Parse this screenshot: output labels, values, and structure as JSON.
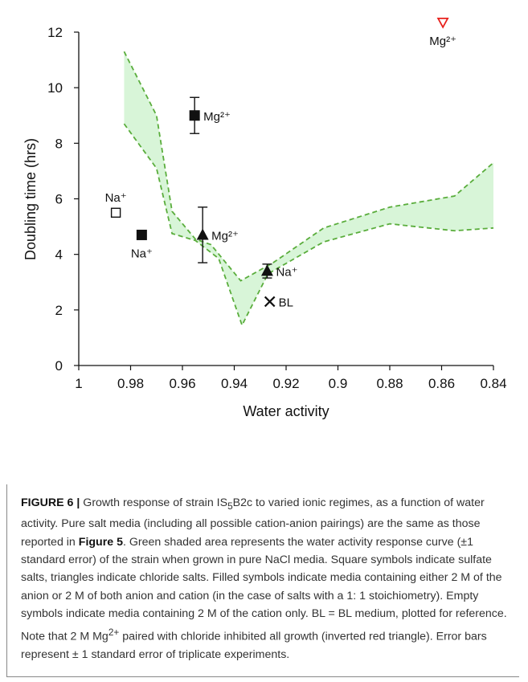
{
  "chart_data": {
    "type": "scatter",
    "xlabel": "Water activity",
    "ylabel": "Doubling time (hrs)",
    "xlim": [
      1,
      0.84
    ],
    "ylim": [
      0,
      12
    ],
    "x_reversed": true,
    "xticks": [
      "1",
      "0.98",
      "0.96",
      "0.94",
      "0.92",
      "0.9",
      "0.88",
      "0.86",
      "0.84"
    ],
    "yticks": [
      "0",
      "2",
      "4",
      "6",
      "8",
      "10",
      "12"
    ],
    "grid": false,
    "band": {
      "fill": "#d8f5d8",
      "stroke": "#5aad3c",
      "upper": [
        [
          0.9825,
          11.3
        ],
        [
          0.97,
          9.0
        ],
        [
          0.964,
          5.55
        ],
        [
          0.955,
          4.55
        ],
        [
          0.949,
          4.35
        ],
        [
          0.9375,
          3.05
        ],
        [
          0.925,
          3.7
        ],
        [
          0.9055,
          4.95
        ],
        [
          0.88,
          5.7
        ],
        [
          0.855,
          6.1
        ],
        [
          0.84,
          7.3
        ]
      ],
      "lower": [
        [
          0.9825,
          8.7
        ],
        [
          0.97,
          7.1
        ],
        [
          0.964,
          4.75
        ],
        [
          0.955,
          4.5
        ],
        [
          0.946,
          3.85
        ],
        [
          0.937,
          1.45
        ],
        [
          0.927,
          3.3
        ],
        [
          0.9055,
          4.45
        ],
        [
          0.88,
          5.1
        ],
        [
          0.855,
          4.85
        ],
        [
          0.84,
          4.95
        ]
      ]
    },
    "points": [
      {
        "x": 0.9857,
        "y": 5.5,
        "marker": "open-square",
        "color": "#111111",
        "label": "Na⁺",
        "label_pos": "above"
      },
      {
        "x": 0.9757,
        "y": 4.7,
        "marker": "filled-square",
        "color": "#111111",
        "label": "Na⁺",
        "label_pos": "below"
      },
      {
        "x": 0.9553,
        "y": 9.0,
        "marker": "filled-square",
        "color": "#111111",
        "label": "Mg²⁺",
        "label_pos": "right",
        "err": 0.65
      },
      {
        "x": 0.9522,
        "y": 4.7,
        "marker": "filled-triangle",
        "color": "#111111",
        "label": "Mg²⁺",
        "label_pos": "right",
        "err": 1.0
      },
      {
        "x": 0.9273,
        "y": 3.4,
        "marker": "filled-triangle",
        "color": "#111111",
        "label": "Na⁺",
        "label_pos": "right",
        "err": 0.25
      },
      {
        "x": 0.9263,
        "y": 2.3,
        "marker": "cross",
        "color": "#111111",
        "label": "BL",
        "label_pos": "right"
      },
      {
        "x": 0.8595,
        "y": 12.35,
        "marker": "inverted-triangle",
        "color": "#e8211c",
        "label": "Mg²⁺",
        "label_pos": "below"
      }
    ]
  },
  "caption": {
    "label": "FIGURE 6 |",
    "text_1": " Growth response of strain IS",
    "sub_1": "5",
    "text_2": "B2c to varied ionic regimes, as a function of water activity. Pure salt media (including all possible cation-anion pairings) are the same as those reported in ",
    "ref": "Figure 5",
    "text_3": ". Green shaded area represents the water activity response curve (±1 standard error) of the strain when grown in pure NaCl media. Square symbols indicate sulfate salts, triangles indicate chloride salts. Filled symbols indicate media containing either 2 M of the anion or 2 M of both anion and cation (in the case of salts with a 1: 1 stoichiometry). Empty symbols indicate media containing 2 M of the cation only. BL = BL medium, plotted for reference. Note that 2 M Mg",
    "sup_1": "2+",
    "text_4": " paired with chloride inhibited all growth (inverted red triangle). Error bars represent ± 1 standard error of triplicate experiments."
  }
}
